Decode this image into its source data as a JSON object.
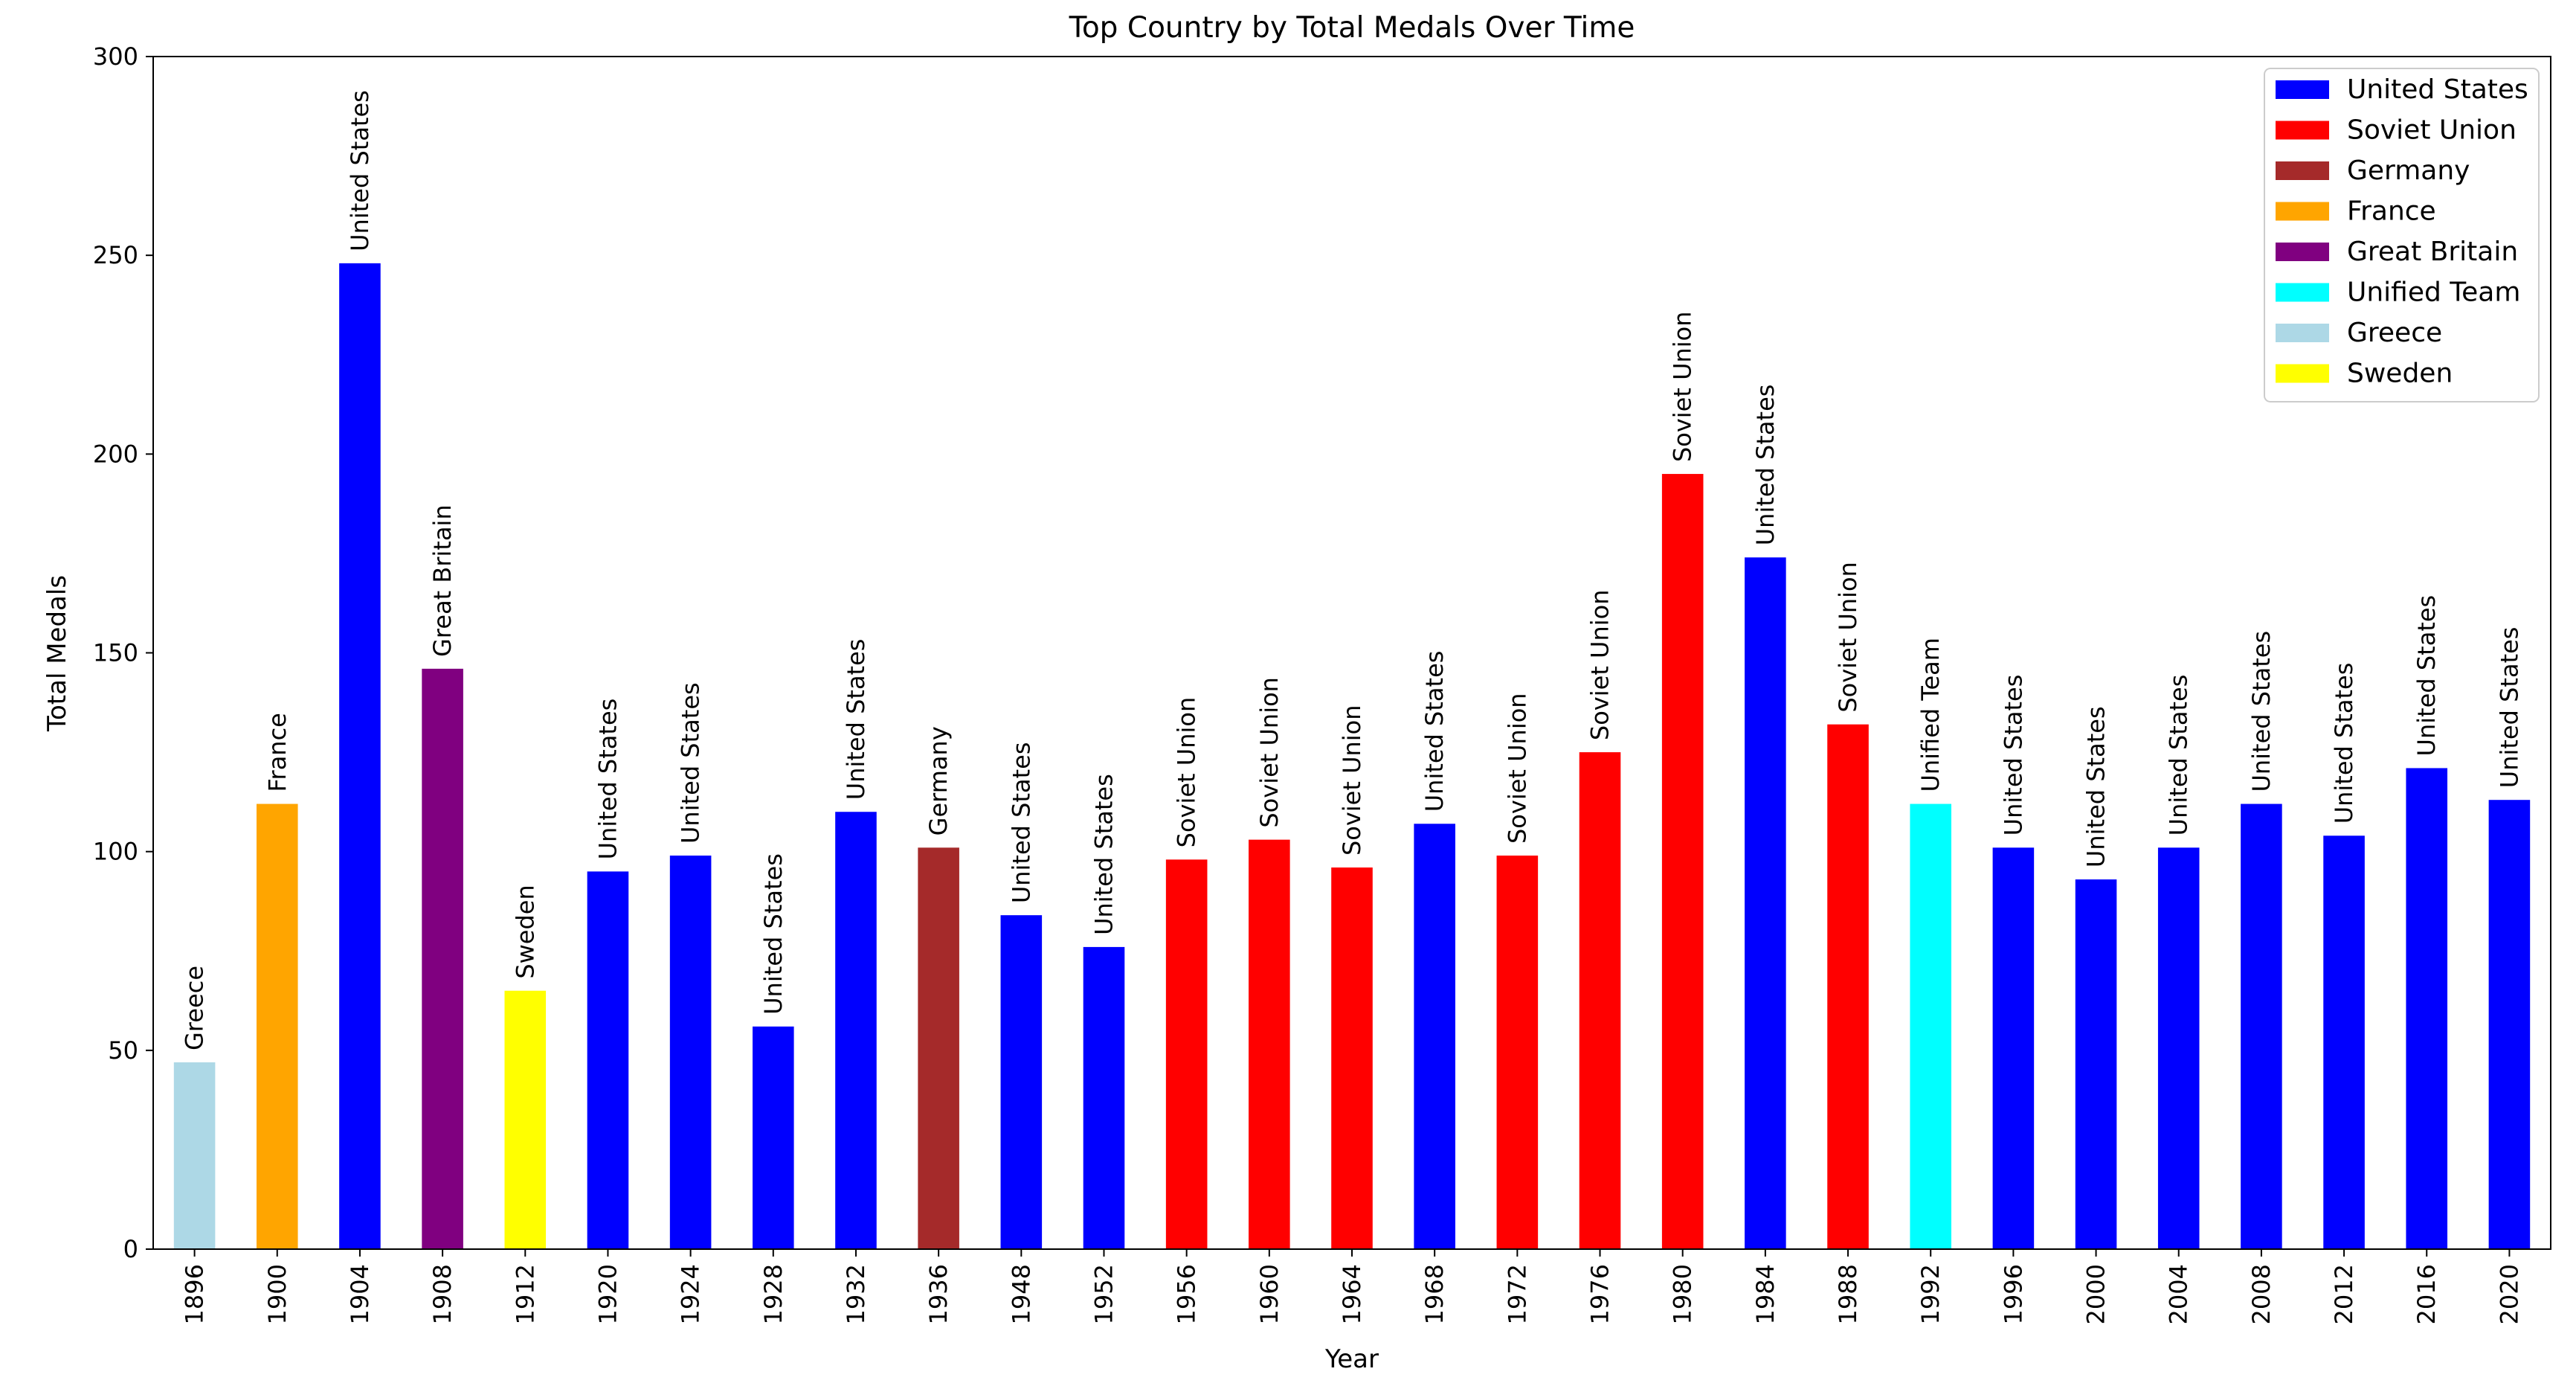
{
  "chart_data": {
    "type": "bar",
    "title": "Top Country by Total Medals Over Time",
    "xlabel": "Year",
    "ylabel": "Total Medals",
    "ylim": [
      0,
      300
    ],
    "yticks": [
      0,
      50,
      100,
      150,
      200,
      250,
      300
    ],
    "grid": false,
    "legend_position": "top-right",
    "categories": [
      "1896",
      "1900",
      "1904",
      "1908",
      "1912",
      "1920",
      "1924",
      "1928",
      "1932",
      "1936",
      "1948",
      "1952",
      "1956",
      "1960",
      "1964",
      "1968",
      "1972",
      "1976",
      "1980",
      "1984",
      "1988",
      "1992",
      "1996",
      "2000",
      "2004",
      "2008",
      "2012",
      "2016",
      "2020"
    ],
    "values": [
      47,
      112,
      248,
      146,
      65,
      95,
      99,
      56,
      110,
      101,
      84,
      76,
      98,
      103,
      96,
      107,
      99,
      125,
      195,
      174,
      132,
      112,
      101,
      93,
      101,
      112,
      104,
      121,
      113
    ],
    "countries": [
      "Greece",
      "France",
      "United States",
      "Great Britain",
      "Sweden",
      "United States",
      "United States",
      "United States",
      "United States",
      "Germany",
      "United States",
      "United States",
      "Soviet Union",
      "Soviet Union",
      "Soviet Union",
      "United States",
      "Soviet Union",
      "Soviet Union",
      "Soviet Union",
      "United States",
      "Soviet Union",
      "Unified Team",
      "United States",
      "United States",
      "United States",
      "United States",
      "United States",
      "United States",
      "United States"
    ],
    "legend": [
      {
        "name": "United States",
        "color": "#0000ff"
      },
      {
        "name": "Soviet Union",
        "color": "#ff0000"
      },
      {
        "name": "Germany",
        "color": "#a52a2a"
      },
      {
        "name": "France",
        "color": "#ffa500"
      },
      {
        "name": "Great Britain",
        "color": "#800080"
      },
      {
        "name": "Unified Team",
        "color": "#00ffff"
      },
      {
        "name": "Greece",
        "color": "#add8e6"
      },
      {
        "name": "Sweden",
        "color": "#ffff00"
      }
    ]
  }
}
